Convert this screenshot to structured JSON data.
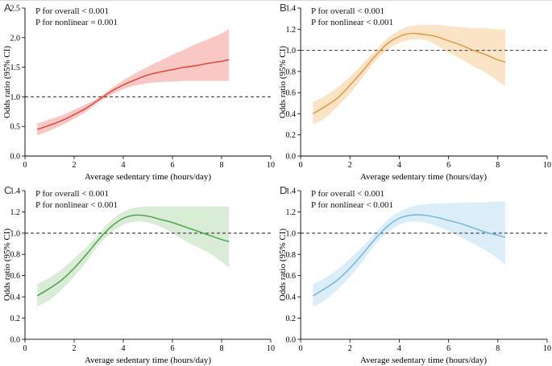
{
  "figure": {
    "background": "#ffffff",
    "text_color": "#000000",
    "reference_line_color": "#4a4a4a",
    "axis_color": "#000000"
  },
  "chart_data": [
    {
      "type": "line",
      "panel_label": "A",
      "annotations": [
        "P for overall < 0.001",
        "P for nonlinear = 0.001"
      ],
      "xlabel": "Average sedentary time (hours/day)",
      "ylabel": "Odds ratio (95% CI)",
      "xlim": [
        0,
        10
      ],
      "ylim": [
        0,
        2.5
      ],
      "xtick_labels": [
        "0",
        "2",
        "4",
        "6",
        "8",
        "10"
      ],
      "ytick_labels": [
        "0.0",
        "0.5",
        "1.0",
        "1.5",
        "2.0",
        "2.5"
      ],
      "reference_line_y": 1.0,
      "grid": false,
      "legend": "none",
      "line_color": "#e23d33",
      "band_color": "#f9c8c4",
      "series": [
        {
          "name": "odds-ratio-with-95ci",
          "x": [
            0.5,
            1.0,
            1.5,
            2.0,
            2.5,
            3.0,
            3.5,
            4.0,
            4.5,
            5.0,
            5.5,
            6.0,
            6.5,
            7.0,
            7.5,
            8.0,
            8.3
          ],
          "y": [
            0.45,
            0.52,
            0.6,
            0.7,
            0.81,
            0.95,
            1.09,
            1.2,
            1.29,
            1.37,
            1.42,
            1.46,
            1.5,
            1.53,
            1.57,
            1.6,
            1.63
          ],
          "ci_lower": [
            0.35,
            0.43,
            0.52,
            0.63,
            0.75,
            0.91,
            1.03,
            1.13,
            1.19,
            1.23,
            1.25,
            1.26,
            1.27,
            1.27,
            1.27,
            1.27,
            1.27
          ],
          "ci_upper": [
            0.55,
            0.62,
            0.69,
            0.78,
            0.88,
            0.99,
            1.14,
            1.28,
            1.4,
            1.51,
            1.61,
            1.71,
            1.8,
            1.9,
            1.98,
            2.07,
            2.14
          ]
        }
      ]
    },
    {
      "type": "line",
      "panel_label": "B",
      "annotations": [
        "P for overall < 0.001",
        "P for nonlinear < 0.001"
      ],
      "xlabel": "Average sedentary time (hours/day)",
      "ylabel": "Odds ratio (95% CI)",
      "xlim": [
        0,
        10
      ],
      "ylim": [
        0,
        1.4
      ],
      "xtick_labels": [
        "0",
        "2",
        "4",
        "6",
        "8",
        "10"
      ],
      "ytick_labels": [
        "0.0",
        "0.2",
        "0.4",
        "0.6",
        "0.8",
        "1.0",
        "1.2",
        "1.4"
      ],
      "reference_line_y": 1.0,
      "grid": false,
      "legend": "none",
      "line_color": "#e2943c",
      "band_color": "#fbe3c6",
      "series": [
        {
          "name": "odds-ratio-with-95ci",
          "x": [
            0.5,
            1.0,
            1.5,
            2.0,
            2.5,
            3.0,
            3.5,
            4.0,
            4.5,
            5.0,
            5.5,
            6.0,
            6.5,
            7.0,
            7.5,
            8.0,
            8.3
          ],
          "y": [
            0.4,
            0.47,
            0.55,
            0.67,
            0.8,
            0.94,
            1.06,
            1.13,
            1.16,
            1.15,
            1.13,
            1.09,
            1.05,
            1.0,
            0.96,
            0.91,
            0.89
          ],
          "ci_lower": [
            0.3,
            0.36,
            0.47,
            0.59,
            0.74,
            0.89,
            1.0,
            1.07,
            1.1,
            1.1,
            1.05,
            0.98,
            0.92,
            0.85,
            0.79,
            0.71,
            0.66
          ],
          "ci_upper": [
            0.51,
            0.57,
            0.65,
            0.75,
            0.87,
            0.99,
            1.11,
            1.19,
            1.23,
            1.24,
            1.24,
            1.23,
            1.22,
            1.21,
            1.21,
            1.2,
            1.2
          ]
        }
      ]
    },
    {
      "type": "line",
      "panel_label": "C",
      "annotations": [
        "P for overall < 0.001",
        "P for nonlinear < 0.001"
      ],
      "xlabel": "Average sedentary time (hours/day)",
      "ylabel": "Odds ratio (95% CI)",
      "xlim": [
        0,
        10
      ],
      "ylim": [
        0,
        1.4
      ],
      "xtick_labels": [
        "0",
        "2",
        "4",
        "6",
        "8",
        "10"
      ],
      "ytick_labels": [
        "0.0",
        "0.2",
        "0.4",
        "0.6",
        "0.8",
        "1.0",
        "1.2",
        "1.4"
      ],
      "reference_line_y": 1.0,
      "grid": false,
      "legend": "none",
      "line_color": "#44a048",
      "band_color": "#d9ecd5",
      "series": [
        {
          "name": "odds-ratio-with-95ci",
          "x": [
            0.5,
            1.0,
            1.5,
            2.0,
            2.5,
            3.0,
            3.5,
            4.0,
            4.5,
            5.0,
            5.5,
            6.0,
            6.5,
            7.0,
            7.5,
            8.0,
            8.3
          ],
          "y": [
            0.41,
            0.48,
            0.56,
            0.67,
            0.8,
            0.94,
            1.06,
            1.14,
            1.17,
            1.16,
            1.13,
            1.1,
            1.06,
            1.02,
            0.98,
            0.94,
            0.92
          ],
          "ci_lower": [
            0.31,
            0.37,
            0.47,
            0.59,
            0.73,
            0.89,
            1.0,
            1.08,
            1.11,
            1.1,
            1.06,
            1.0,
            0.93,
            0.87,
            0.81,
            0.73,
            0.68
          ],
          "ci_upper": [
            0.52,
            0.58,
            0.66,
            0.76,
            0.87,
            0.99,
            1.12,
            1.2,
            1.24,
            1.25,
            1.25,
            1.25,
            1.25,
            1.25,
            1.25,
            1.25,
            1.25
          ]
        }
      ]
    },
    {
      "type": "line",
      "panel_label": "D",
      "annotations": [
        "P for overall < 0.001",
        "P for nonlinear < 0.001"
      ],
      "xlabel": "Average sedentary time (hours/day)",
      "ylabel": "Odds ratio (95% CI)",
      "xlim": [
        0,
        10
      ],
      "ylim": [
        0,
        1.4
      ],
      "xtick_labels": [
        "0",
        "2",
        "4",
        "6",
        "8",
        "10"
      ],
      "ytick_labels": [
        "0.0",
        "0.2",
        "0.4",
        "0.6",
        "0.8",
        "1.0",
        "1.2",
        "1.4"
      ],
      "reference_line_y": 1.0,
      "grid": false,
      "legend": "none",
      "line_color": "#6cb5d9",
      "band_color": "#dcedfa",
      "series": [
        {
          "name": "odds-ratio-with-95ci",
          "x": [
            0.5,
            1.0,
            1.5,
            2.0,
            2.5,
            3.0,
            3.5,
            4.0,
            4.5,
            5.0,
            5.5,
            6.0,
            6.5,
            7.0,
            7.5,
            8.0,
            8.3
          ],
          "y": [
            0.41,
            0.48,
            0.56,
            0.67,
            0.8,
            0.94,
            1.06,
            1.14,
            1.17,
            1.17,
            1.15,
            1.12,
            1.09,
            1.05,
            1.01,
            0.98,
            0.96
          ],
          "ci_lower": [
            0.31,
            0.37,
            0.47,
            0.59,
            0.73,
            0.89,
            1.0,
            1.08,
            1.11,
            1.1,
            1.07,
            1.02,
            0.96,
            0.9,
            0.84,
            0.76,
            0.7
          ],
          "ci_upper": [
            0.52,
            0.58,
            0.66,
            0.76,
            0.87,
            0.99,
            1.12,
            1.2,
            1.25,
            1.27,
            1.28,
            1.28,
            1.29,
            1.29,
            1.29,
            1.3,
            1.3
          ]
        }
      ]
    }
  ]
}
